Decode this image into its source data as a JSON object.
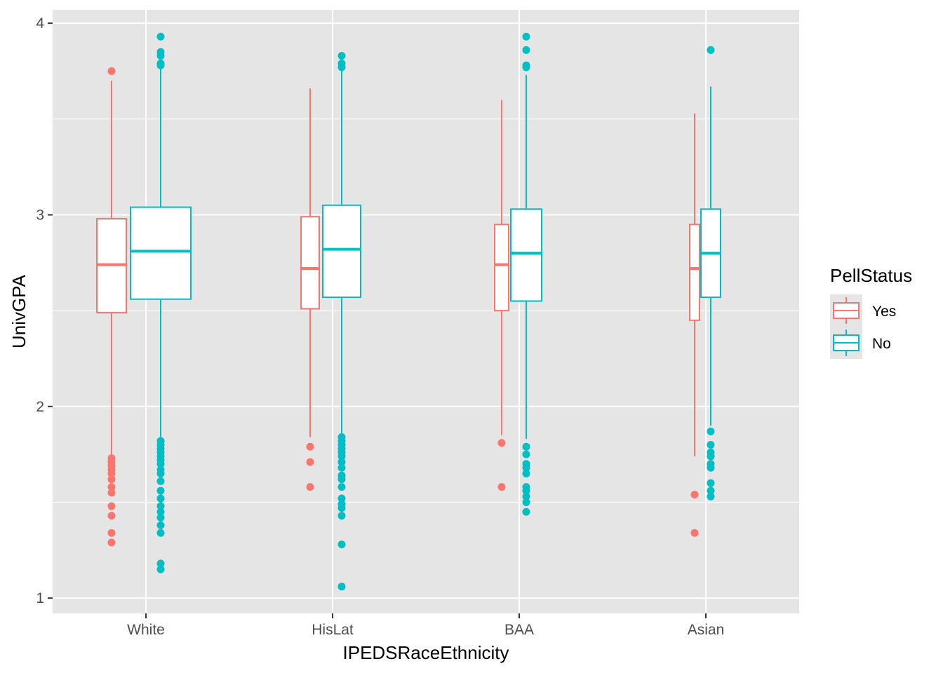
{
  "chart_data": {
    "type": "boxplot",
    "xlabel": "IPEDSRaceEthnicity",
    "ylabel": "UnivGPA",
    "categories": [
      "White",
      "HisLat",
      "BAA",
      "Asian"
    ],
    "ylim": [
      0.92,
      4.07
    ],
    "yticks": [
      1,
      2,
      3,
      4
    ],
    "y_tick_labels": [
      "1",
      "2",
      "3",
      "4"
    ],
    "grid": true,
    "panel_background": "#e5e5e5",
    "legend": {
      "title": "PellStatus",
      "placement": "right",
      "entries": [
        "Yes",
        "No"
      ]
    },
    "series": [
      {
        "name": "Yes",
        "color": "#f8766d",
        "boxes": [
          {
            "category": "White",
            "lower_whisker": 1.74,
            "q1": 2.49,
            "median": 2.74,
            "q3": 2.98,
            "upper_whisker": 3.7,
            "outliers": [
              3.75,
              1.73,
              1.71,
              1.69,
              1.67,
              1.65,
              1.62,
              1.58,
              1.55,
              1.48,
              1.43,
              1.34,
              1.29
            ]
          },
          {
            "category": "HisLat",
            "lower_whisker": 1.84,
            "q1": 2.51,
            "median": 2.72,
            "q3": 2.99,
            "upper_whisker": 3.66,
            "outliers": [
              1.79,
              1.71,
              1.58
            ]
          },
          {
            "category": "BAA",
            "lower_whisker": 1.85,
            "q1": 2.5,
            "median": 2.74,
            "q3": 2.95,
            "upper_whisker": 3.6,
            "outliers": [
              1.81,
              1.58
            ]
          },
          {
            "category": "Asian",
            "lower_whisker": 1.74,
            "q1": 2.45,
            "median": 2.72,
            "q3": 2.95,
            "upper_whisker": 3.53,
            "outliers": [
              1.54,
              1.34
            ]
          }
        ]
      },
      {
        "name": "No",
        "color": "#00bfc4",
        "boxes": [
          {
            "category": "White",
            "lower_whisker": 1.84,
            "q1": 2.56,
            "median": 2.81,
            "q3": 3.04,
            "upper_whisker": 3.76,
            "outliers": [
              3.93,
              3.85,
              3.83,
              3.79,
              3.78,
              1.82,
              1.8,
              1.78,
              1.76,
              1.74,
              1.72,
              1.7,
              1.67,
              1.65,
              1.61,
              1.56,
              1.52,
              1.48,
              1.45,
              1.42,
              1.38,
              1.34,
              1.18,
              1.15
            ]
          },
          {
            "category": "HisLat",
            "lower_whisker": 1.85,
            "q1": 2.57,
            "median": 2.82,
            "q3": 3.05,
            "upper_whisker": 3.75,
            "outliers": [
              3.83,
              3.79,
              3.77,
              1.84,
              1.82,
              1.8,
              1.78,
              1.76,
              1.74,
              1.71,
              1.68,
              1.64,
              1.62,
              1.58,
              1.52,
              1.49,
              1.47,
              1.43,
              1.28,
              1.06
            ]
          },
          {
            "category": "BAA",
            "lower_whisker": 1.83,
            "q1": 2.55,
            "median": 2.8,
            "q3": 3.03,
            "upper_whisker": 3.73,
            "outliers": [
              3.93,
              3.86,
              3.78,
              3.77,
              1.79,
              1.75,
              1.7,
              1.68,
              1.65,
              1.58,
              1.56,
              1.53,
              1.5,
              1.45
            ]
          },
          {
            "category": "Asian",
            "lower_whisker": 1.9,
            "q1": 2.57,
            "median": 2.8,
            "q3": 3.03,
            "upper_whisker": 3.67,
            "outliers": [
              3.86,
              1.87,
              1.8,
              1.76,
              1.74,
              1.7,
              1.68,
              1.6,
              1.56,
              1.53
            ]
          }
        ]
      }
    ]
  }
}
